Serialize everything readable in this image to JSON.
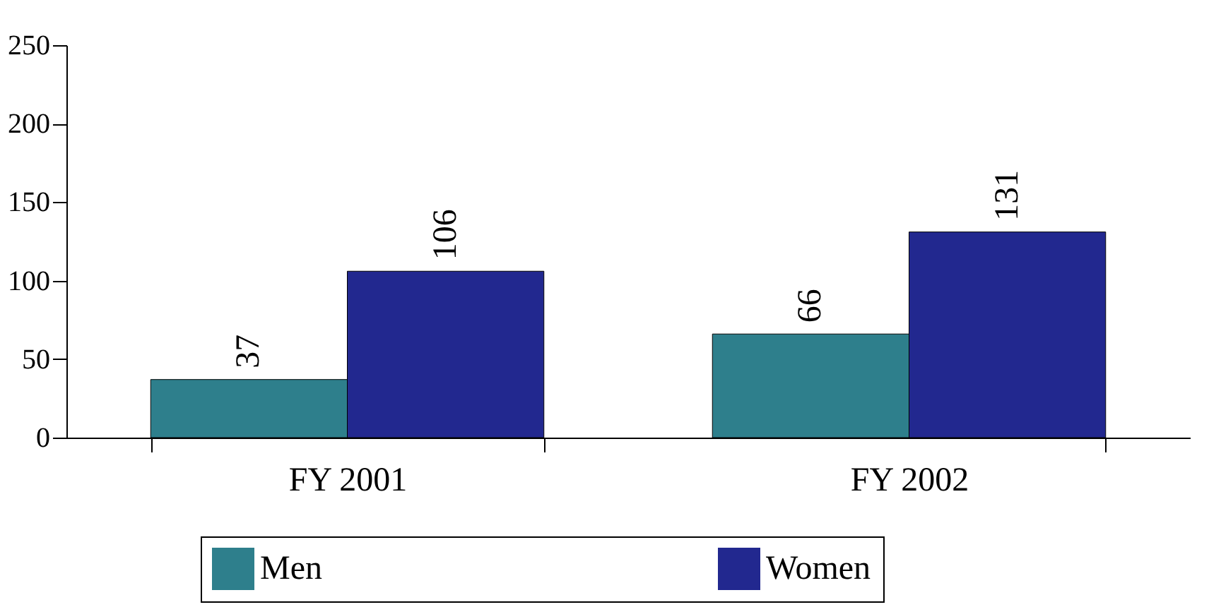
{
  "chart_data": {
    "type": "bar",
    "categories": [
      "FY 2001",
      "FY 2002"
    ],
    "series": [
      {
        "name": "Men",
        "color": "#2e7f8c",
        "values": [
          37,
          66
        ],
        "value_labels": [
          "37",
          "66"
        ]
      },
      {
        "name": "Women",
        "color": "#22288f",
        "values": [
          106,
          131
        ],
        "value_labels": [
          "106",
          "131"
        ]
      }
    ],
    "ylim": [
      0,
      250
    ],
    "yticks": [
      0,
      50,
      100,
      150,
      200,
      250
    ],
    "grid": false,
    "legend": "bottom"
  }
}
